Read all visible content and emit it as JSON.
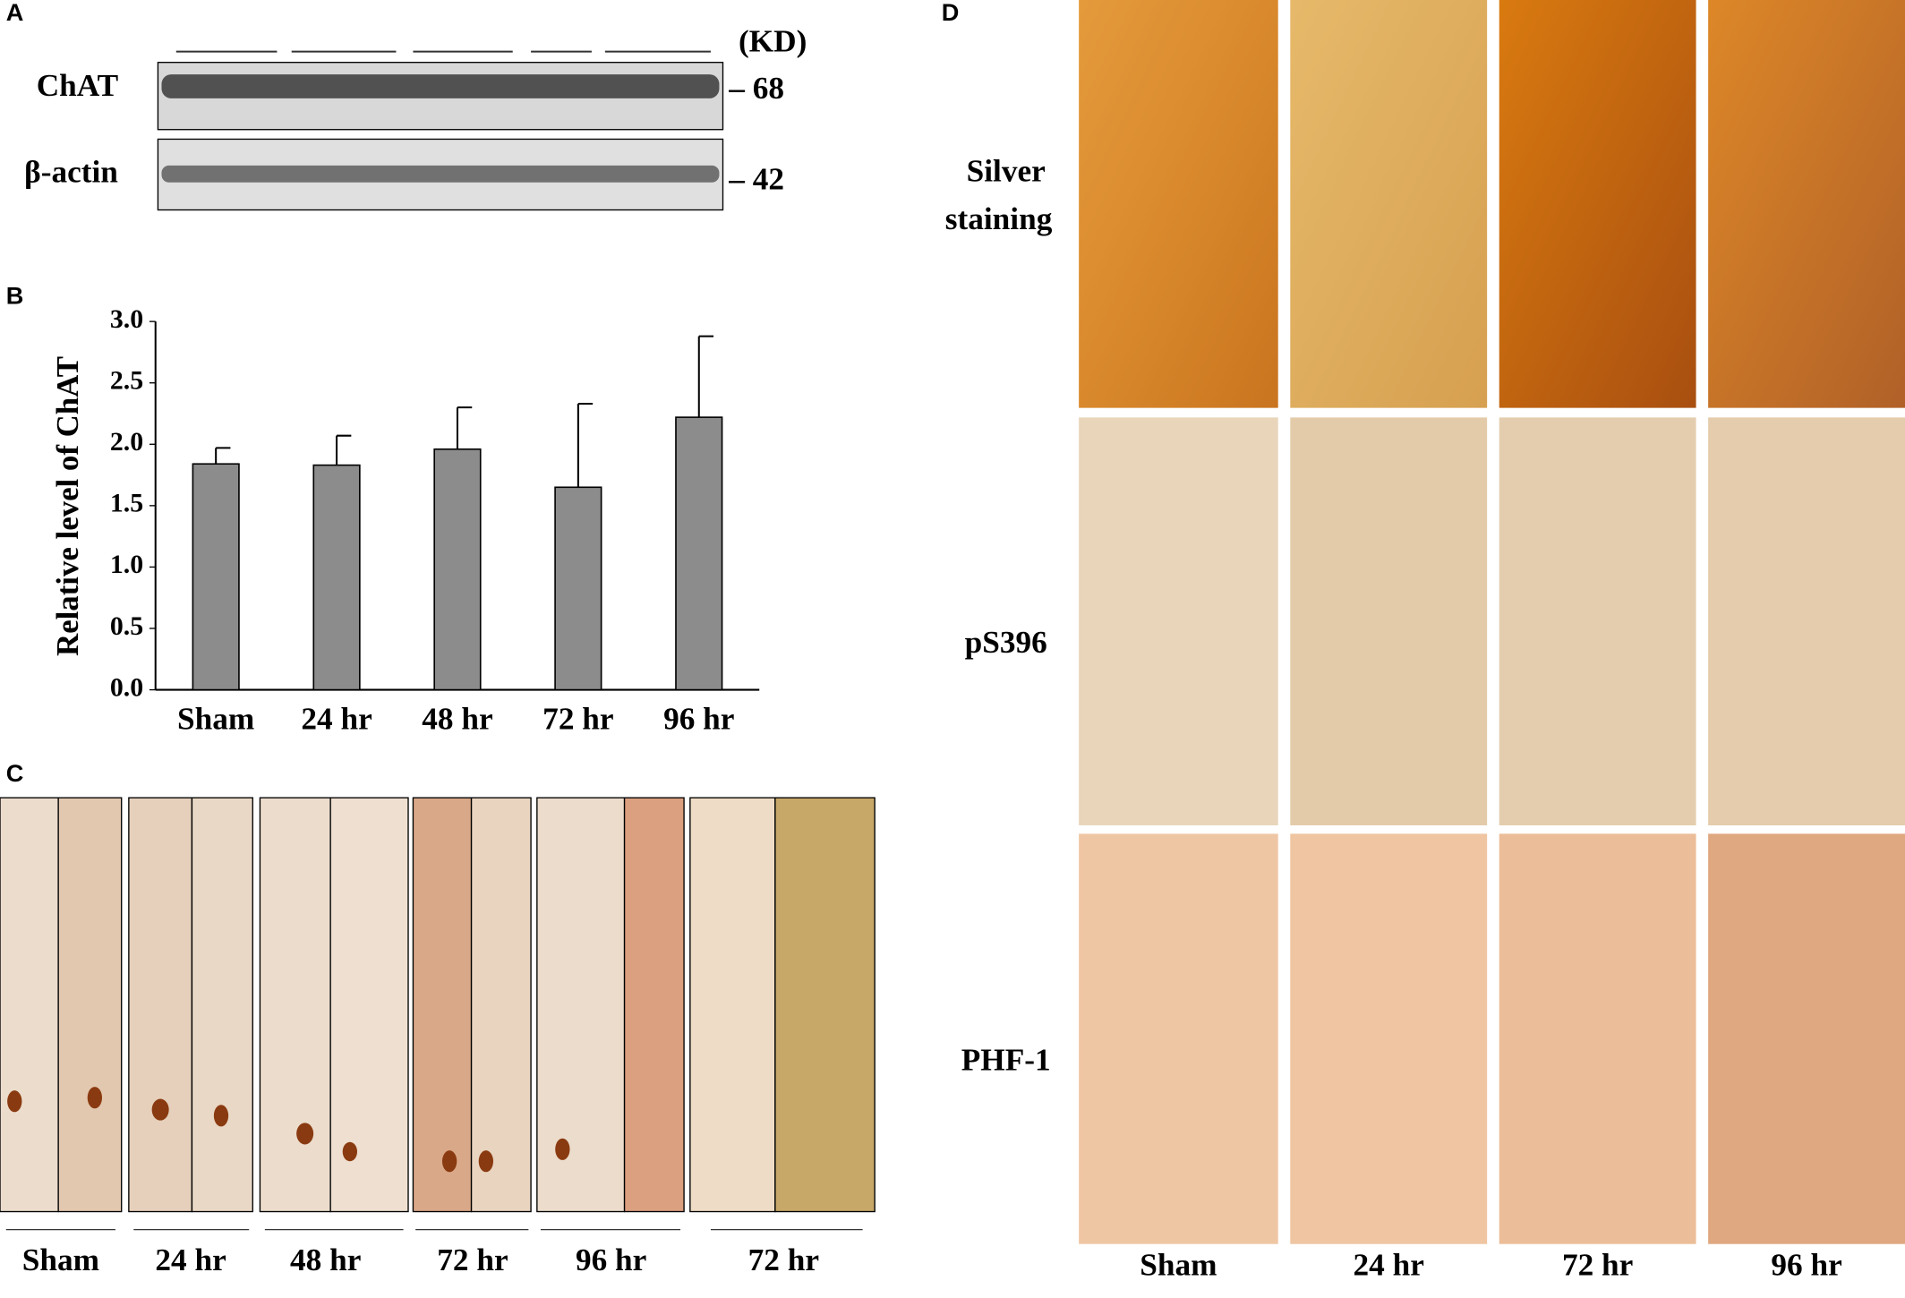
{
  "panel_a": {
    "label": "A",
    "unit": "(KD)",
    "rows": [
      {
        "name": "ChAT",
        "marker": "– 68"
      },
      {
        "name": "β-actin",
        "marker": "– 42"
      }
    ]
  },
  "chart_data": {
    "type": "bar",
    "panel_label": "B",
    "y_label": "Relative level of ChAT",
    "categories": [
      "Sham",
      "24 hr",
      "48 hr",
      "72 hr",
      "96 hr"
    ],
    "values": [
      1.84,
      1.83,
      1.96,
      1.65,
      2.22
    ],
    "errors": [
      0.13,
      0.24,
      0.34,
      0.68,
      0.66
    ],
    "color": "#8c8c8c",
    "ylim": [
      0,
      3
    ],
    "yticks": [
      {
        "value": 0,
        "label": "0.0"
      },
      0.5,
      {
        "value": 1,
        "label": "1.0"
      },
      1.5,
      {
        "value": 2,
        "label": "2.0"
      },
      2.5,
      {
        "value": 3,
        "label": "3.0"
      }
    ]
  },
  "panel_c": {
    "label": "C",
    "columns": [
      "Sham",
      "24 hr",
      "48 hr",
      "72 hr",
      "96 hr",
      "72 hr"
    ]
  },
  "panel_d": {
    "label": "D",
    "rows": [
      [
        "Silver",
        "staining"
      ],
      [
        "pS396"
      ],
      [
        "PHF-1"
      ]
    ],
    "columns": [
      "Sham",
      "24 hr",
      "72 hr",
      "96 hr"
    ]
  }
}
